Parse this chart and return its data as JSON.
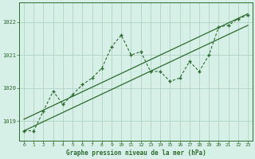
{
  "title": "Graphe pression niveau de la mer (hPa)",
  "bg_color": "#d6f0e8",
  "plot_bg_color": "#d6f0e8",
  "grid_color": "#b0d4c4",
  "line_color": "#2d6a2d",
  "xlim": [
    -0.5,
    23.5
  ],
  "ylim": [
    1018.4,
    1022.6
  ],
  "yticks": [
    1019,
    1020,
    1021,
    1022
  ],
  "xticks": [
    0,
    1,
    2,
    3,
    4,
    5,
    6,
    7,
    8,
    9,
    10,
    11,
    12,
    13,
    14,
    15,
    16,
    17,
    18,
    19,
    20,
    21,
    22,
    23
  ],
  "series1_x": [
    0,
    1,
    2,
    3,
    4,
    5,
    6,
    7,
    8,
    9,
    10,
    11,
    12,
    13,
    14,
    15,
    16,
    17,
    18,
    19,
    20,
    21,
    22,
    23
  ],
  "series1_y": [
    1018.7,
    1018.7,
    1019.3,
    1019.9,
    1019.5,
    1019.8,
    1020.1,
    1020.3,
    1020.6,
    1021.25,
    1021.6,
    1021.0,
    1021.1,
    1020.5,
    1020.5,
    1020.2,
    1020.3,
    1020.8,
    1020.5,
    1021.0,
    1021.85,
    1021.9,
    1022.1,
    1022.2
  ],
  "trend1_x": [
    0,
    23
  ],
  "trend1_y": [
    1019.05,
    1022.25
  ],
  "trend2_x": [
    0,
    23
  ],
  "trend2_y": [
    1018.7,
    1021.9
  ]
}
